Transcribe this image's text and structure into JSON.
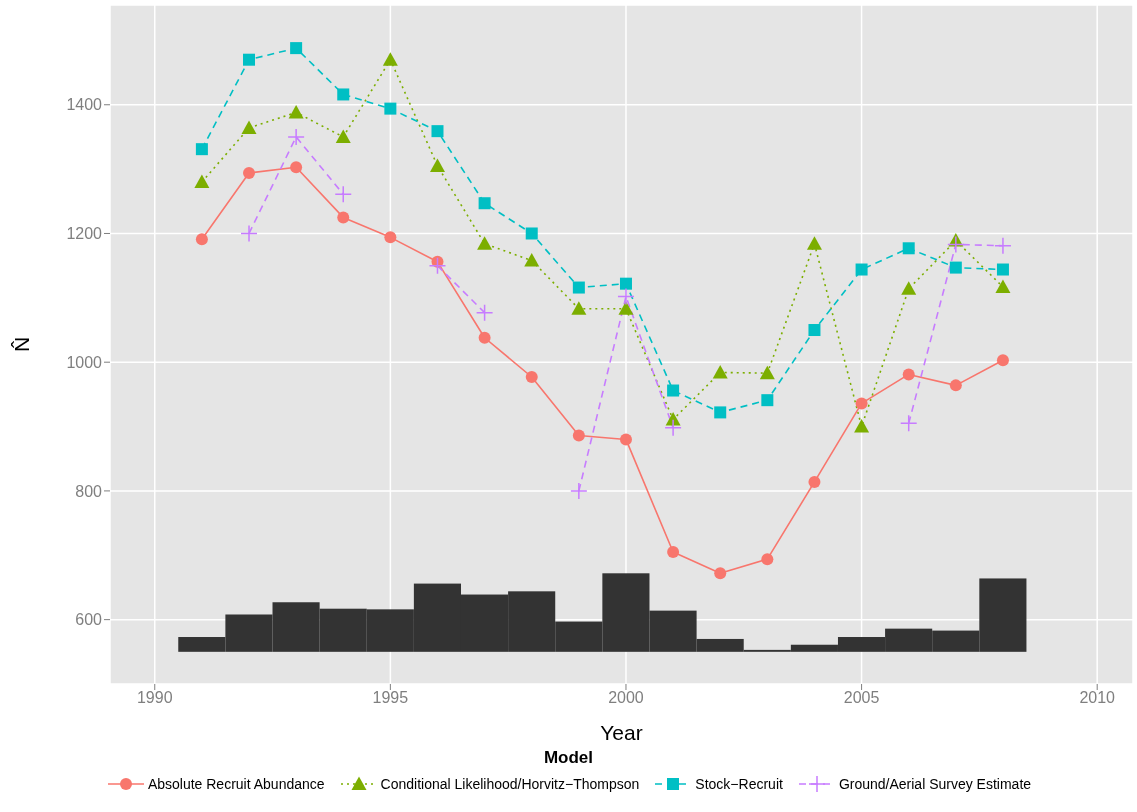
{
  "chart_data": {
    "type": "line",
    "xlabel": "Year",
    "ylabel": "N̂",
    "legend_title": "Model",
    "legend": "bottom",
    "grid": true,
    "x": [
      1991,
      1992,
      1993,
      1994,
      1995,
      1996,
      1997,
      1998,
      1999,
      2000,
      2001,
      2002,
      2003,
      2004,
      2005,
      2006,
      2007,
      2008
    ],
    "xlim": [
      1989.05,
      2010.76
    ],
    "xticks": [
      1990,
      1995,
      2000,
      2005,
      2010
    ],
    "ylim": [
      500,
      1555
    ],
    "yticks": [
      600,
      800,
      1000,
      1200,
      1400
    ],
    "series": [
      {
        "type": "bar",
        "color": "#333333",
        "base": [
          550,
          550,
          550,
          550,
          550,
          550,
          550,
          550,
          550,
          550,
          550,
          550,
          550,
          550,
          550,
          550,
          550,
          550
        ],
        "values": [
          23,
          58,
          77,
          67,
          66,
          106,
          89,
          94,
          47,
          122,
          64,
          20,
          3,
          11,
          23,
          36,
          33,
          114
        ]
      },
      {
        "name": "Absolute Recruit Abundance",
        "color": "#f8766d",
        "marker": "circle",
        "line_style": "solid",
        "values": [
          1191,
          1294,
          1303,
          1225,
          1194,
          1156,
          1038,
          977,
          886,
          880,
          705,
          672,
          694,
          814,
          936,
          981,
          964,
          1003
        ]
      },
      {
        "name": "Conditional Likelihood/Horvitz−Thompson",
        "color": "#7cae00",
        "marker": "triangle",
        "line_style": "dotted",
        "values": [
          1280,
          1364,
          1388,
          1350,
          1470,
          1305,
          1184,
          1158,
          1083,
          1083,
          911,
          984,
          983,
          1184,
          900,
          1114,
          1189,
          1117
        ]
      },
      {
        "name": "Stock−Recruit",
        "color": "#00bfc4",
        "marker": "square",
        "line_style": "dashed",
        "values": [
          1331,
          1470,
          1488,
          1416,
          1394,
          1359,
          1247,
          1200,
          1116,
          1122,
          956,
          922,
          941,
          1050,
          1144,
          1177,
          1147,
          1144
        ]
      },
      {
        "name": "Ground/Aerial Survey Estimate",
        "color": "#c77cff",
        "marker": "cross",
        "line_style": "dashed",
        "values": [
          null,
          1200,
          1350,
          1261,
          null,
          1150,
          1077,
          null,
          800,
          1102,
          898,
          null,
          null,
          null,
          null,
          905,
          1183,
          1181
        ]
      }
    ]
  }
}
